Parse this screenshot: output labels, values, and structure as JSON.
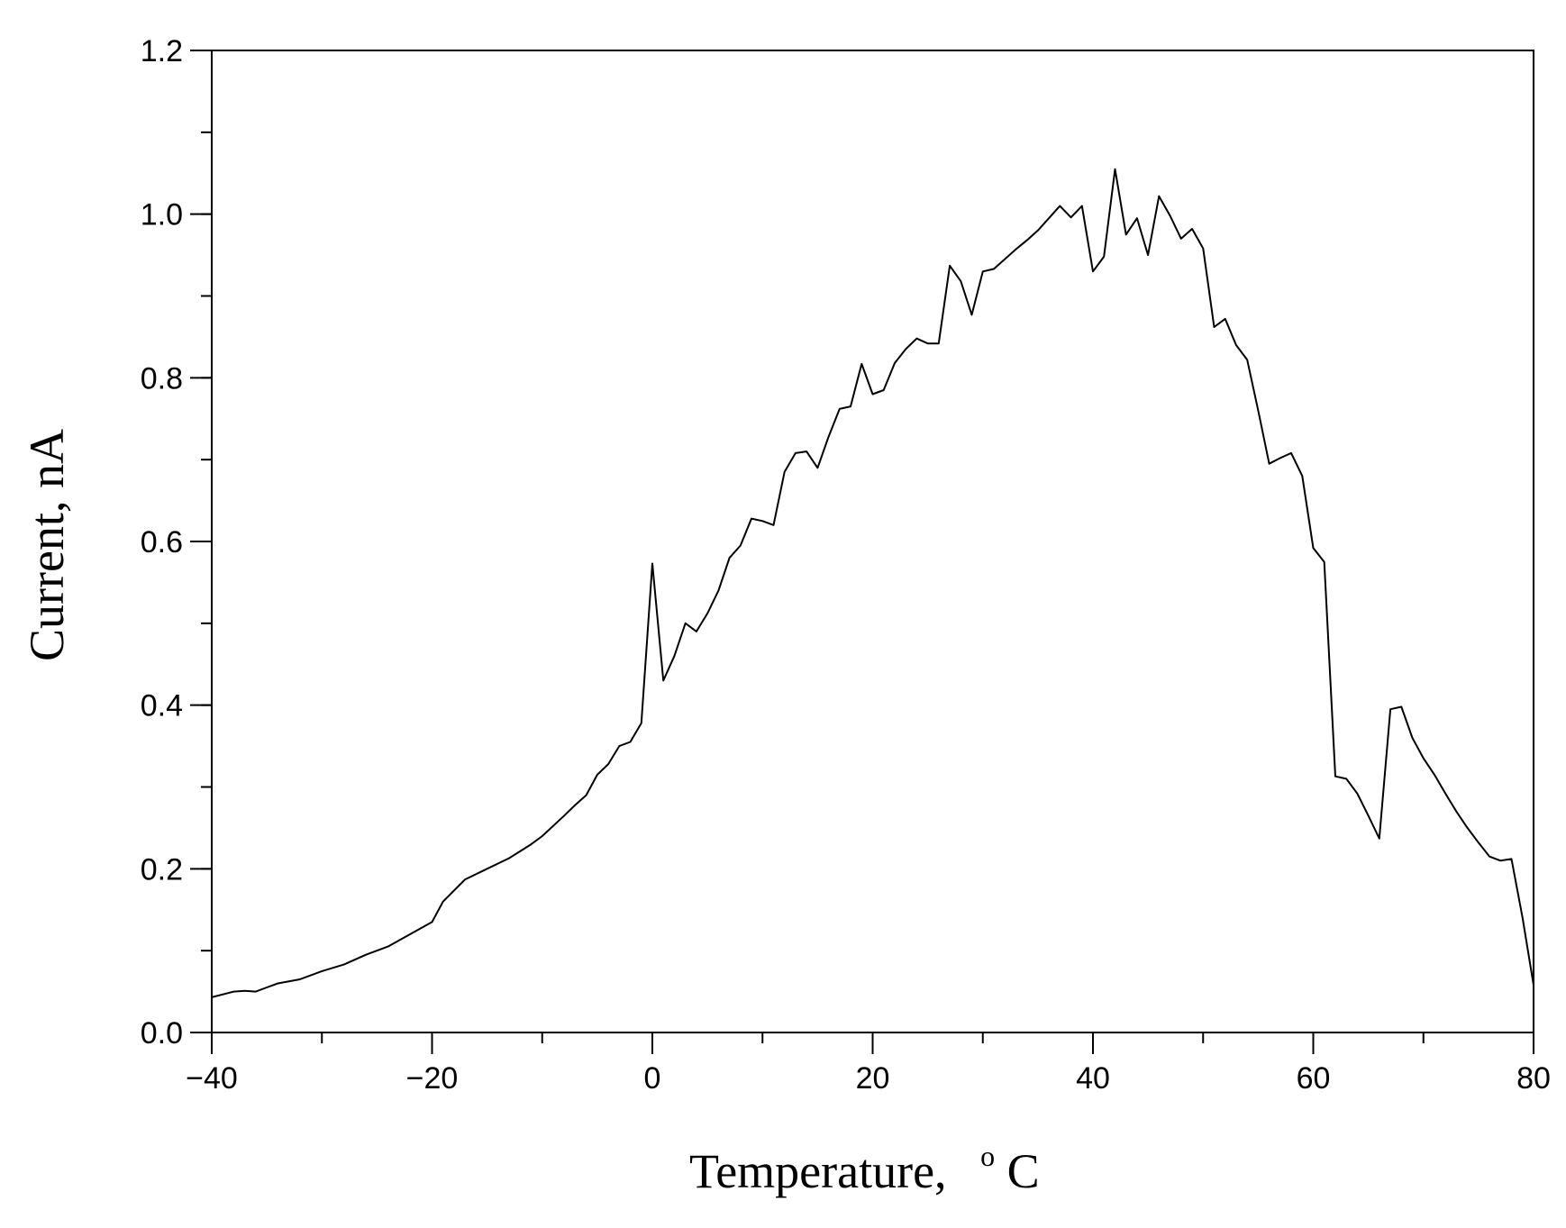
{
  "chart_data": {
    "type": "line",
    "xlabel": "Temperature,",
    "xlabel_unit_sup": "o",
    "xlabel_unit": "C",
    "ylabel": "Current, nA",
    "xlim": [
      -40,
      80
    ],
    "ylim": [
      0.0,
      1.2
    ],
    "x_major_ticks": [
      -40,
      -20,
      0,
      20,
      40,
      60,
      80
    ],
    "x_tick_labels": [
      "−40",
      "−20",
      "0",
      "20",
      "40",
      "60",
      "80"
    ],
    "x_minor_step": 10,
    "y_major_ticks": [
      0.0,
      0.2,
      0.4,
      0.6,
      0.8,
      1.0,
      1.2
    ],
    "y_tick_labels": [
      "0.0",
      "0.2",
      "0.4",
      "0.6",
      "0.8",
      "1.0",
      "1.2"
    ],
    "y_minor_step": 0.1,
    "grid": false,
    "line_color": "#000000",
    "series": [
      {
        "x": [
          -40,
          -38,
          -37,
          -36,
          -35,
          -34,
          -32,
          -30,
          -28,
          -26,
          -24,
          -22,
          -20,
          -19,
          -17,
          -15,
          -13,
          -11,
          -10,
          -8,
          -7,
          -6,
          -5,
          -4,
          -3,
          -2,
          -1,
          0,
          1,
          2,
          3,
          4,
          5,
          6,
          7,
          8,
          9,
          10,
          11,
          12,
          13,
          14,
          15,
          16,
          17,
          18,
          19,
          20,
          21,
          22,
          23,
          24,
          25,
          26,
          27,
          28,
          29,
          30,
          31,
          32,
          33,
          34,
          35,
          36,
          37,
          38,
          39,
          40,
          41,
          42,
          43,
          44,
          45,
          46,
          47,
          48,
          49,
          50,
          51,
          52,
          53,
          54,
          55,
          56,
          57,
          58,
          59,
          60,
          61,
          62,
          63,
          64,
          65,
          66,
          67,
          68,
          69,
          70,
          71,
          72,
          73,
          74,
          75,
          76,
          77,
          78,
          79,
          80
        ],
        "y": [
          0.043,
          0.05,
          0.051,
          0.05,
          0.055,
          0.06,
          0.065,
          0.075,
          0.083,
          0.095,
          0.105,
          0.12,
          0.135,
          0.16,
          0.187,
          0.2,
          0.213,
          0.23,
          0.24,
          0.265,
          0.278,
          0.29,
          0.315,
          0.328,
          0.35,
          0.355,
          0.378,
          0.573,
          0.43,
          0.46,
          0.5,
          0.49,
          0.512,
          0.54,
          0.58,
          0.595,
          0.628,
          0.625,
          0.62,
          0.685,
          0.708,
          0.71,
          0.69,
          0.728,
          0.762,
          0.765,
          0.817,
          0.78,
          0.785,
          0.818,
          0.835,
          0.848,
          0.842,
          0.842,
          0.937,
          0.918,
          0.877,
          0.93,
          0.933,
          0.945,
          0.957,
          0.968,
          0.98,
          0.995,
          1.01,
          0.996,
          1.01,
          0.93,
          0.948,
          1.055,
          0.975,
          0.995,
          0.95,
          1.022,
          0.998,
          0.97,
          0.982,
          0.958,
          0.862,
          0.872,
          0.84,
          0.822,
          0.76,
          0.695,
          0.702,
          0.708,
          0.68,
          0.592,
          0.575,
          0.313,
          0.31,
          0.292,
          0.265,
          0.237,
          0.395,
          0.398,
          0.36,
          0.335,
          0.315,
          0.292,
          0.27,
          0.25,
          0.232,
          0.215,
          0.21,
          0.212,
          0.14,
          0.058
        ]
      }
    ]
  }
}
